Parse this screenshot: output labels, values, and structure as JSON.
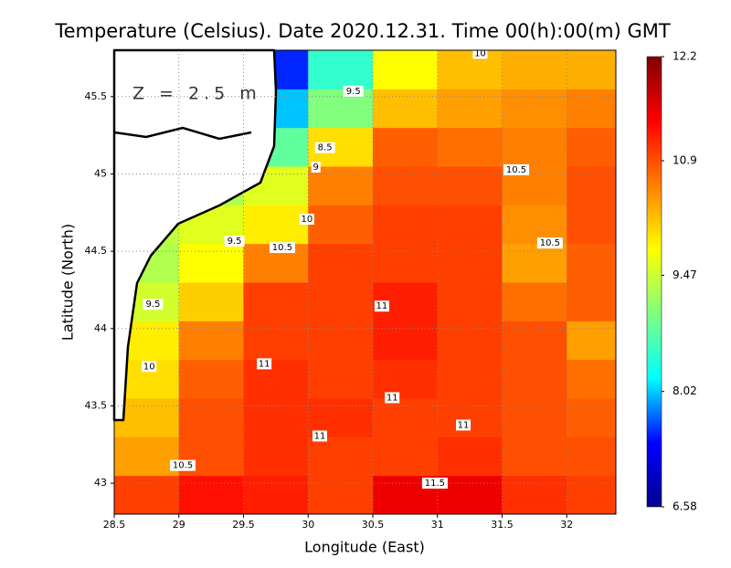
{
  "chart_data": {
    "type": "heatmap",
    "title": "Temperature (Celsius). Date 2020.12.31. Time 00(h):00(m) GMT",
    "x_label": "Longitude (East)",
    "y_label": "Latitude (North)",
    "annotation": "Z = 2.5 m",
    "xlim": [
      28.5,
      32.38
    ],
    "ylim": [
      42.8,
      45.8
    ],
    "xticks": [
      28.5,
      29,
      29.5,
      30,
      30.5,
      31,
      31.5,
      32
    ],
    "yticks": [
      43,
      43.5,
      44,
      44.5,
      45,
      45.5
    ],
    "grid": true,
    "x_edges": [
      28.5,
      29,
      29.5,
      30,
      30.5,
      31,
      31.5,
      32,
      32.5
    ],
    "y_edges": [
      42.8,
      43.05,
      43.3,
      43.55,
      43.8,
      44.05,
      44.3,
      44.55,
      44.8,
      45.05,
      45.3,
      45.55,
      45.8
    ],
    "z": [
      [
        11,
        11.3,
        11.2,
        11,
        11.5,
        11.5,
        11.1,
        11
      ],
      [
        10.4,
        10.9,
        11.1,
        11,
        11,
        11.1,
        10.9,
        10.9
      ],
      [
        10.2,
        10.9,
        11.1,
        11.1,
        11,
        11,
        10.9,
        10.8
      ],
      [
        10,
        10.8,
        11.1,
        11,
        11.1,
        11,
        10.9,
        10.7
      ],
      [
        9.9,
        10.6,
        11,
        11,
        11.2,
        11,
        10.9,
        10.4
      ],
      [
        9.5,
        10.1,
        11,
        11,
        11.2,
        11,
        10.7,
        10.8
      ],
      [
        9.3,
        9.8,
        10.6,
        11,
        11,
        11,
        10.4,
        10.8
      ],
      [
        9.4,
        9.6,
        9.9,
        10.8,
        11,
        11,
        10.5,
        10.9
      ],
      [
        null,
        9.3,
        9.6,
        10.6,
        10.9,
        10.9,
        10.6,
        10.9
      ],
      [
        null,
        null,
        8.8,
        10,
        10.8,
        10.7,
        10.6,
        10.8
      ],
      [
        null,
        null,
        8,
        9,
        10.2,
        10.4,
        10.5,
        10.6
      ],
      [
        null,
        null,
        7.5,
        8.5,
        9.8,
        10.2,
        10.3,
        10.3
      ]
    ],
    "colormap": [
      "#00008f",
      "#0000ff",
      "#00ffff",
      "#80ff80",
      "#ffff00",
      "#ff8000",
      "#ff0000",
      "#800000"
    ],
    "clim": [
      6.58,
      12.2
    ],
    "colorbar_ticks": [
      6.58,
      8.02,
      9.47,
      10.9,
      12.2
    ],
    "contour_labels": [
      {
        "value": 10,
        "lon": 31.33,
        "lat": 45.78
      },
      {
        "value": 9.5,
        "lon": 30.35,
        "lat": 45.535
      },
      {
        "value": 8.5,
        "lon": 30.13,
        "lat": 45.17
      },
      {
        "value": 9,
        "lon": 30.06,
        "lat": 45.044
      },
      {
        "value": 10.5,
        "lon": 31.61,
        "lat": 45.027
      },
      {
        "value": 10,
        "lon": 29.99,
        "lat": 44.707
      },
      {
        "value": 9.5,
        "lon": 29.43,
        "lat": 44.565
      },
      {
        "value": 10.5,
        "lon": 29.8,
        "lat": 44.524
      },
      {
        "value": 10.5,
        "lon": 31.87,
        "lat": 44.553
      },
      {
        "value": 11,
        "lon": 30.57,
        "lat": 44.145
      },
      {
        "value": 9.5,
        "lon": 28.8,
        "lat": 44.157
      },
      {
        "value": 10,
        "lon": 28.77,
        "lat": 43.755
      },
      {
        "value": 11,
        "lon": 29.66,
        "lat": 43.772
      },
      {
        "value": 11,
        "lon": 30.65,
        "lat": 43.553
      },
      {
        "value": 11,
        "lon": 31.2,
        "lat": 43.376
      },
      {
        "value": 11,
        "lon": 30.09,
        "lat": 43.305
      },
      {
        "value": 10.5,
        "lon": 29.03,
        "lat": 43.115
      },
      {
        "value": 11.5,
        "lon": 30.98,
        "lat": 43.0
      }
    ]
  }
}
